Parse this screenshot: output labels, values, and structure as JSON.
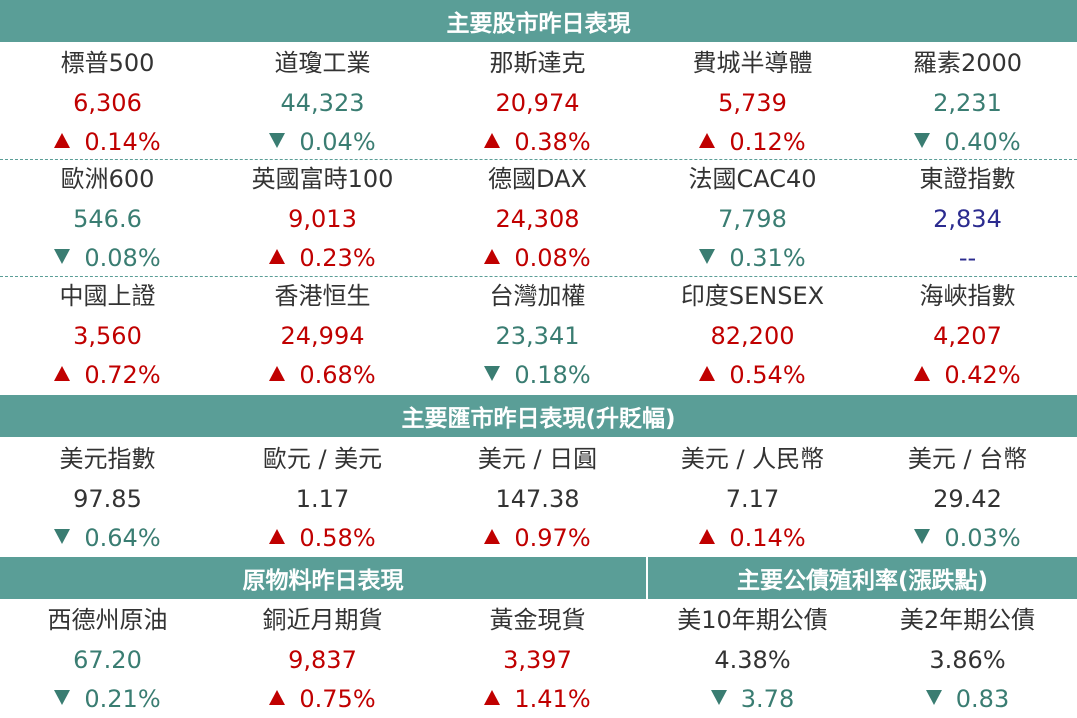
{
  "colors": {
    "header_bg": "#5a9e97",
    "up": "#c00000",
    "down": "#3a7d72",
    "navy": "#2b2b8f"
  },
  "headers": {
    "stocks": "主要股市昨日表現",
    "fx": "主要匯市昨日表現(升貶幅)",
    "commodities": "原物料昨日表現",
    "bonds": "主要公債殖利率(漲跌點)"
  },
  "stocks": [
    [
      {
        "name": "標普500",
        "value": "6,306",
        "change": "0.14%",
        "dir": "up"
      },
      {
        "name": "道瓊工業",
        "value": "44,323",
        "change": "0.04%",
        "dir": "down"
      },
      {
        "name": "那斯達克",
        "value": "20,974",
        "change": "0.38%",
        "dir": "up"
      },
      {
        "name": "費城半導體",
        "value": "5,739",
        "change": "0.12%",
        "dir": "up"
      },
      {
        "name": "羅素2000",
        "value": "2,231",
        "change": "0.40%",
        "dir": "down"
      }
    ],
    [
      {
        "name": "歐洲600",
        "value": "546.6",
        "change": "0.08%",
        "dir": "down"
      },
      {
        "name": "英國富時100",
        "value": "9,013",
        "change": "0.23%",
        "dir": "up"
      },
      {
        "name": "德國DAX",
        "value": "24,308",
        "change": "0.08%",
        "dir": "up"
      },
      {
        "name": "法國CAC40",
        "value": "7,798",
        "change": "0.31%",
        "dir": "down"
      },
      {
        "name": "東證指數",
        "value": "2,834",
        "change": "--",
        "dir": "none"
      }
    ],
    [
      {
        "name": "中國上證",
        "value": "3,560",
        "change": "0.72%",
        "dir": "up"
      },
      {
        "name": "香港恒生",
        "value": "24,994",
        "change": "0.68%",
        "dir": "up"
      },
      {
        "name": "台灣加權",
        "value": "23,341",
        "change": "0.18%",
        "dir": "down"
      },
      {
        "name": "印度SENSEX",
        "value": "82,200",
        "change": "0.54%",
        "dir": "up"
      },
      {
        "name": "海峽指數",
        "value": "4,207",
        "change": "0.42%",
        "dir": "up"
      }
    ]
  ],
  "fx": [
    {
      "name": "美元指數",
      "value": "97.85",
      "change": "0.64%",
      "dir": "down"
    },
    {
      "name": "歐元 / 美元",
      "value": "1.17",
      "change": "0.58%",
      "dir": "up"
    },
    {
      "name": "美元 / 日圓",
      "value": "147.38",
      "change": "0.97%",
      "dir": "up"
    },
    {
      "name": "美元 / 人民幣",
      "value": "7.17",
      "change": "0.14%",
      "dir": "up"
    },
    {
      "name": "美元 / 台幣",
      "value": "29.42",
      "change": "0.03%",
      "dir": "down"
    }
  ],
  "commodities": [
    {
      "name": "西德州原油",
      "value": "67.20",
      "change": "0.21%",
      "dir": "down"
    },
    {
      "name": "銅近月期貨",
      "value": "9,837",
      "change": "0.75%",
      "dir": "up"
    },
    {
      "name": "黃金現貨",
      "value": "3,397",
      "change": "1.41%",
      "dir": "up"
    }
  ],
  "bonds": [
    {
      "name": "美10年期公債",
      "value": "4.38%",
      "change": "3.78",
      "dir": "down"
    },
    {
      "name": "美2年期公債",
      "value": "3.86%",
      "change": "0.83",
      "dir": "down"
    }
  ]
}
